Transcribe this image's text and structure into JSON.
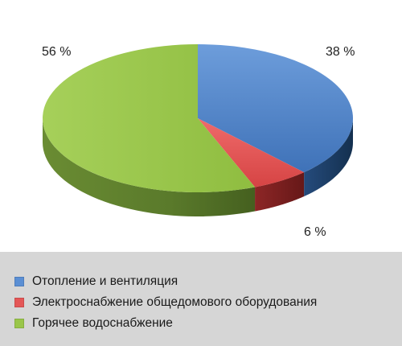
{
  "chart_data": {
    "type": "pie",
    "style": "3d",
    "title": "",
    "categories": [
      "Отопление и вентиляция",
      "Электроснабжение общедомового оборудования",
      "Горячее водоснабжение"
    ],
    "values": [
      38,
      6,
      56
    ],
    "value_labels": [
      "38 %",
      "6 %",
      "56 %"
    ],
    "colors": {
      "top": [
        "#4f86cc",
        "#e25555",
        "#9ac64a"
      ],
      "side": [
        "#1d3d66",
        "#7a1f1f",
        "#56752a"
      ]
    },
    "legend": {
      "position": "bottom"
    }
  }
}
